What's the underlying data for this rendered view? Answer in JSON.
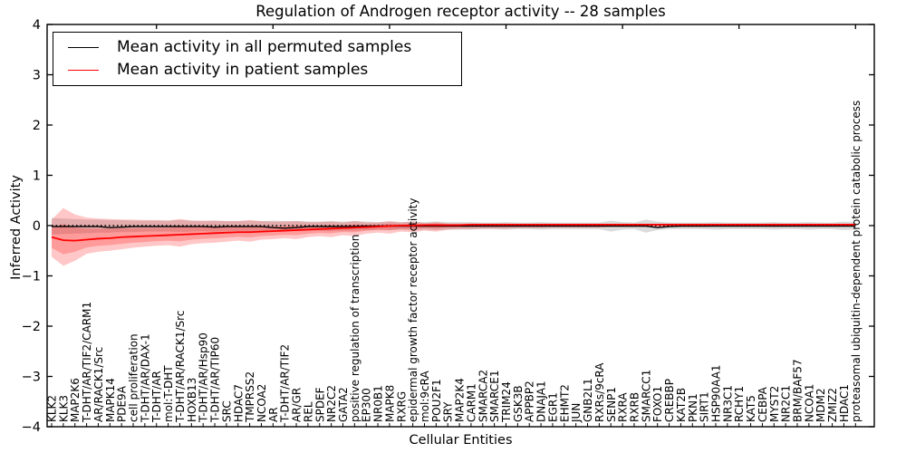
{
  "title": "Regulation of Androgen receptor activity -- 28 samples",
  "axes": {
    "xlabel": "Cellular Entities",
    "ylabel": "Inferred Activity"
  },
  "legend": {
    "entries": [
      {
        "label": "Mean activity in all permuted samples",
        "color": "#000000"
      },
      {
        "label": "Mean activity in patient samples",
        "color": "#ff0000"
      }
    ]
  },
  "chart_data": {
    "type": "line",
    "title": "Regulation of Androgen receptor activity -- 28 samples",
    "xlabel": "Cellular Entities",
    "ylabel": "Inferred Activity",
    "ylim": [
      -4,
      4
    ],
    "yticks": [
      -4,
      -3,
      -2,
      -1,
      0,
      1,
      2,
      3,
      4
    ],
    "grid": false,
    "legend_position": "upper left",
    "zero_reference_line": true,
    "categories": [
      "KLK2",
      "KLK3",
      "MAP2K6",
      "T-DHT/AR/TIF2/CARM1",
      "AR/RACK1/Src",
      "MAPK14",
      "PDE9A",
      "cell proliferation",
      "T-DHT/AR/DAX-1",
      "T-DHT/AR",
      "mol:T-DHT",
      "T-DHT/AR/RACK1/Src",
      "HOXB13",
      "T-DHT/AR/Hsp90",
      "T-DHT/AR/TIP60",
      "SRC",
      "HDAC7",
      "TMPRSS2",
      "NCOA2",
      "AR",
      "T-DHT/AR/TIF2",
      "AR/GR",
      "REL",
      "SPDEF",
      "NR2C2",
      "GATA2",
      "positive regulation of transcription",
      "EP300",
      "NR0B1",
      "MAPK8",
      "RXRG",
      "epidermal growth factor receptor activity",
      "mol:9cRA",
      "POU2F1",
      "SRY",
      "MAP2K4",
      "CARM1",
      "SMARCA2",
      "SMARCE1",
      "TRIM24",
      "GSK3B",
      "APPBP2",
      "DNAJA1",
      "EGR1",
      "EHMT2",
      "JUN",
      "GNB2L1",
      "RXRs/9cRA",
      "SENP1",
      "RXRA",
      "RXRB",
      "SMARCC1",
      "FOXO1",
      "CREBBP",
      "KAT2B",
      "PKN1",
      "SIRT1",
      "HSP90AA1",
      "NR3C1",
      "RCHY1",
      "KAT5",
      "CEBPA",
      "MYST2",
      "NR2C1",
      "BRM/BAF57",
      "NCOA1",
      "MDM2",
      "ZMIZ2",
      "HDAC1",
      "proteasomal ubiquitin-dependent protein catabolic process"
    ],
    "series": [
      {
        "name": "Mean activity in all permuted samples",
        "color": "#000000",
        "values": [
          -0.02,
          -0.02,
          -0.02,
          -0.02,
          -0.02,
          -0.04,
          -0.03,
          -0.02,
          -0.02,
          -0.02,
          -0.02,
          -0.02,
          -0.02,
          -0.02,
          -0.03,
          -0.02,
          -0.02,
          -0.02,
          -0.02,
          -0.04,
          -0.05,
          -0.04,
          -0.02,
          -0.02,
          -0.02,
          -0.02,
          -0.02,
          -0.01,
          -0.01,
          -0.01,
          -0.01,
          -0.01,
          -0.01,
          -0.01,
          -0.01,
          -0.01,
          -0.01,
          -0.01,
          -0.01,
          -0.01,
          -0.01,
          -0.01,
          -0.01,
          -0.01,
          -0.01,
          -0.01,
          -0.01,
          -0.01,
          -0.01,
          -0.01,
          -0.01,
          -0.01,
          -0.04,
          -0.02,
          -0.01,
          -0.01,
          -0.01,
          -0.01,
          -0.01,
          -0.01,
          -0.01,
          -0.01,
          -0.01,
          -0.01,
          -0.01,
          -0.01,
          -0.01,
          -0.01,
          -0.01,
          -0.01
        ]
      },
      {
        "name": "Mean activity in patient samples",
        "color": "#ff0000",
        "values": [
          -0.23,
          -0.29,
          -0.3,
          -0.28,
          -0.26,
          -0.25,
          -0.23,
          -0.22,
          -0.21,
          -0.2,
          -0.19,
          -0.18,
          -0.17,
          -0.16,
          -0.15,
          -0.14,
          -0.13,
          -0.13,
          -0.12,
          -0.11,
          -0.1,
          -0.09,
          -0.08,
          -0.07,
          -0.06,
          -0.05,
          -0.04,
          -0.03,
          -0.02,
          -0.01,
          0.0,
          0.0,
          0.01,
          0.01,
          0.01,
          0.01,
          0.02,
          0.02,
          0.02,
          0.02,
          0.02,
          0.02,
          0.02,
          0.02,
          0.02,
          0.02,
          0.02,
          0.02,
          0.02,
          0.02,
          0.02,
          0.02,
          0.02,
          0.02,
          0.02,
          0.02,
          0.02,
          0.02,
          0.02,
          0.02,
          0.02,
          0.02,
          0.02,
          0.02,
          0.02,
          0.02,
          0.02,
          0.02,
          0.02,
          0.02
        ]
      }
    ],
    "bands": [
      {
        "name": "permuted-samples-range",
        "color": "rgba(130,130,130,0.28)",
        "upper": [
          0.15,
          0.14,
          0.13,
          0.12,
          0.12,
          0.11,
          0.11,
          0.1,
          0.1,
          0.1,
          0.1,
          0.11,
          0.1,
          0.09,
          0.1,
          0.09,
          0.09,
          0.1,
          0.09,
          0.1,
          0.09,
          0.09,
          0.08,
          0.08,
          0.09,
          0.08,
          0.09,
          0.08,
          0.07,
          0.08,
          0.07,
          0.08,
          0.07,
          0.08,
          0.07,
          0.07,
          0.07,
          0.06,
          0.06,
          0.07,
          0.06,
          0.06,
          0.07,
          0.06,
          0.06,
          0.06,
          0.06,
          0.06,
          0.1,
          0.07,
          0.06,
          0.12,
          0.08,
          0.06,
          0.06,
          0.06,
          0.06,
          0.07,
          0.06,
          0.06,
          0.06,
          0.06,
          0.07,
          0.06,
          0.06,
          0.07,
          0.06,
          0.06,
          0.08,
          0.07
        ],
        "lower": [
          -0.18,
          -0.17,
          -0.16,
          -0.15,
          -0.14,
          -0.14,
          -0.13,
          -0.13,
          -0.12,
          -0.12,
          -0.12,
          -0.13,
          -0.12,
          -0.11,
          -0.12,
          -0.11,
          -0.11,
          -0.12,
          -0.11,
          -0.12,
          -0.11,
          -0.11,
          -0.1,
          -0.1,
          -0.11,
          -0.1,
          -0.1,
          -0.09,
          -0.08,
          -0.09,
          -0.08,
          -0.09,
          -0.08,
          -0.09,
          -0.08,
          -0.08,
          -0.08,
          -0.07,
          -0.07,
          -0.08,
          -0.07,
          -0.07,
          -0.08,
          -0.07,
          -0.07,
          -0.07,
          -0.07,
          -0.07,
          -0.12,
          -0.08,
          -0.07,
          -0.14,
          -0.09,
          -0.07,
          -0.07,
          -0.07,
          -0.07,
          -0.08,
          -0.07,
          -0.07,
          -0.07,
          -0.07,
          -0.08,
          -0.07,
          -0.07,
          -0.08,
          -0.07,
          -0.07,
          -0.09,
          -0.08
        ]
      },
      {
        "name": "patient-samples-range",
        "color": "rgba(255,0,0,0.22)",
        "upper": [
          0.12,
          0.35,
          0.22,
          0.16,
          0.14,
          0.13,
          0.12,
          0.12,
          0.11,
          0.11,
          0.1,
          0.13,
          0.1,
          0.1,
          0.1,
          0.09,
          0.09,
          0.11,
          0.09,
          0.08,
          0.08,
          0.09,
          0.07,
          0.07,
          0.08,
          0.06,
          0.09,
          0.06,
          0.06,
          0.09,
          0.06,
          0.08,
          0.05,
          0.07,
          0.04,
          0.04,
          0.04,
          0.04,
          0.04,
          0.04,
          0.03,
          0.03,
          0.03,
          0.03,
          0.03,
          0.03,
          0.03,
          0.03,
          0.03,
          0.03,
          0.03,
          0.03,
          0.03,
          0.03,
          0.03,
          0.03,
          0.03,
          0.03,
          0.03,
          0.03,
          0.03,
          0.03,
          0.04,
          0.03,
          0.03,
          0.03,
          0.03,
          0.03,
          0.03,
          0.03
        ],
        "lower": [
          -0.62,
          -0.8,
          -0.7,
          -0.56,
          -0.52,
          -0.5,
          -0.47,
          -0.44,
          -0.42,
          -0.4,
          -0.39,
          -0.42,
          -0.37,
          -0.35,
          -0.34,
          -0.32,
          -0.3,
          -0.32,
          -0.28,
          -0.27,
          -0.25,
          -0.27,
          -0.23,
          -0.21,
          -0.23,
          -0.19,
          -0.21,
          -0.16,
          -0.14,
          -0.16,
          -0.12,
          -0.13,
          -0.1,
          -0.12,
          -0.08,
          -0.07,
          -0.07,
          -0.06,
          -0.06,
          -0.06,
          -0.05,
          -0.05,
          -0.05,
          -0.04,
          -0.04,
          -0.04,
          -0.04,
          -0.04,
          -0.03,
          -0.03,
          -0.03,
          -0.03,
          -0.03,
          -0.03,
          -0.03,
          -0.03,
          -0.03,
          -0.02,
          -0.02,
          -0.02,
          -0.02,
          -0.02,
          -0.03,
          -0.02,
          -0.02,
          -0.02,
          -0.02,
          -0.02,
          -0.02,
          -0.02
        ]
      }
    ]
  }
}
